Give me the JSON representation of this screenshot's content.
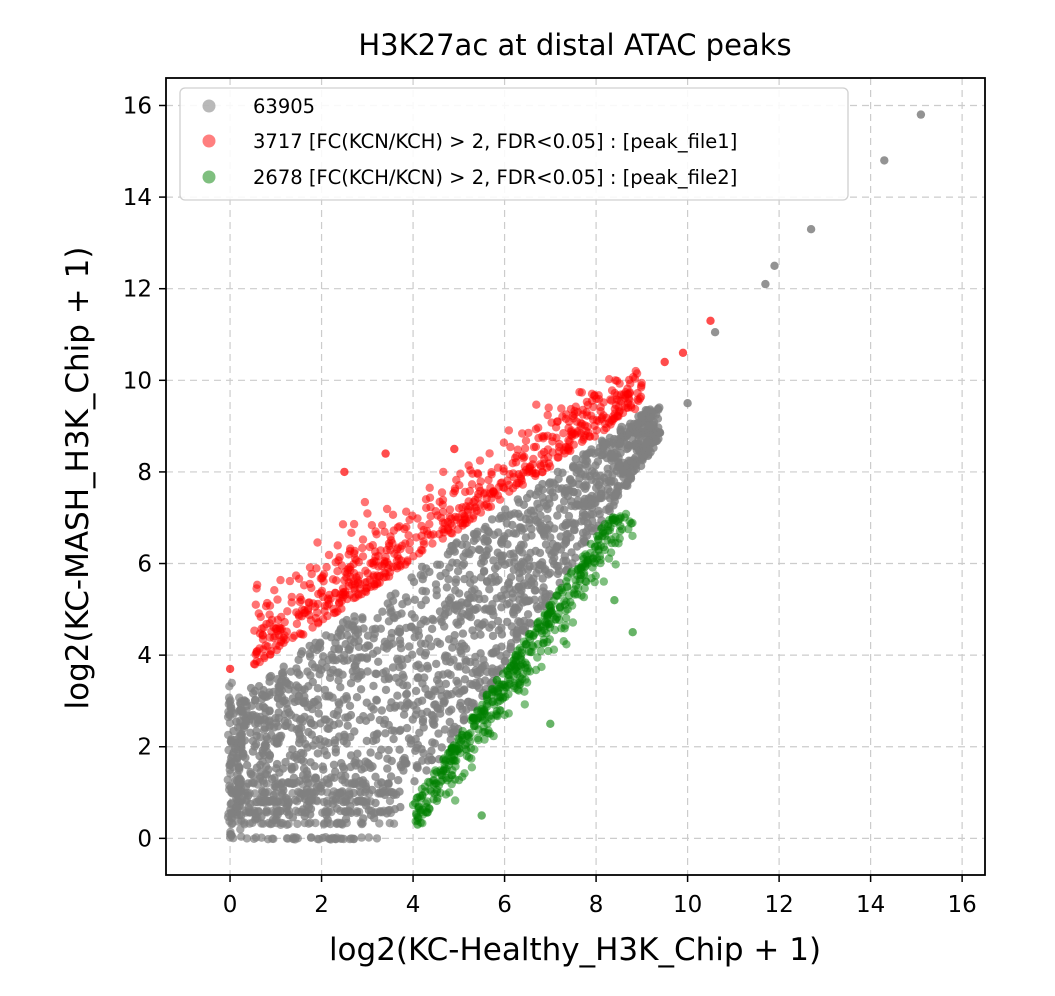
{
  "chart_data": {
    "type": "scatter",
    "title": "H3K27ac at distal ATAC peaks",
    "xlabel": "log2(KC-Healthy_H3K_Chip + 1)",
    "ylabel": "log2(KC-MASH_H3K_Chip + 1)",
    "xlim": [
      -1.4,
      16.5
    ],
    "ylim": [
      -0.8,
      16.6
    ],
    "xticks": [
      0,
      2,
      4,
      6,
      8,
      10,
      12,
      14,
      16
    ],
    "yticks": [
      0,
      2,
      4,
      6,
      8,
      10,
      12,
      14,
      16
    ],
    "grid": true,
    "grid_style": "dashed",
    "legend_position": "upper-left",
    "series": [
      {
        "name": "63905",
        "color": "#808080",
        "count": 63905,
        "region": "center band along diagonal, x 0-9.5, y 0-10",
        "points": [
          [
            11.7,
            12.1
          ],
          [
            11.9,
            12.5
          ],
          [
            12.7,
            13.3
          ],
          [
            14.3,
            14.8
          ],
          [
            15.1,
            15.8
          ],
          [
            10.6,
            11.05
          ],
          [
            10.0,
            9.5
          ]
        ]
      },
      {
        "name": "3717 [FC(KCN/KCH) > 2, FDR<0.05] : [peak_file1]",
        "color": "#ff0000",
        "count": 3717,
        "region": "above gray band, x 0-9, y 3.7-10",
        "points": [
          [
            10.5,
            11.3
          ],
          [
            9.9,
            10.6
          ],
          [
            9.5,
            10.4
          ],
          [
            3.4,
            8.4
          ],
          [
            4.9,
            8.5
          ],
          [
            2.5,
            8.0
          ],
          [
            0.0,
            3.7
          ]
        ]
      },
      {
        "name": "2678 [FC(KCH/KCN) > 2, FDR<0.05] : [peak_file2]",
        "color": "#008000",
        "count": 2678,
        "region": "below gray band, x 4-9, y 0.3-7",
        "points": [
          [
            8.8,
            4.5
          ],
          [
            8.4,
            5.2
          ],
          [
            4.1,
            0.3
          ],
          [
            5.5,
            0.5
          ],
          [
            7.0,
            2.5
          ]
        ]
      }
    ]
  }
}
